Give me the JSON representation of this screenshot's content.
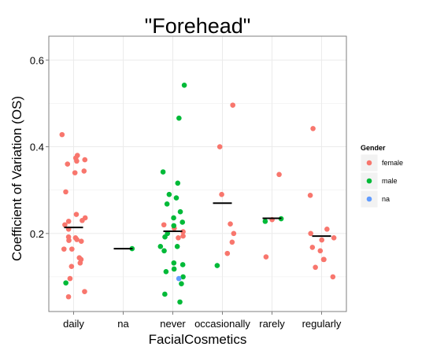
{
  "chart_data": {
    "type": "scatter",
    "title": "\"Forehead\"",
    "xlabel": "FacialCosmetics",
    "ylabel": "Coefficient of Variation (OS)",
    "categories": [
      "daily",
      "na",
      "never",
      "occasionally",
      "rarely",
      "regularly"
    ],
    "yticks": [
      "0.2",
      "0.4",
      "0.6"
    ],
    "ylim": [
      0.02,
      0.655
    ],
    "grid": true,
    "legend": {
      "title": "Gender",
      "position": "right",
      "entries": [
        "female",
        "male",
        "na"
      ]
    },
    "colors": {
      "female": "#f8766d",
      "male": "#00ba38",
      "na": "#619cff",
      "mean": "#000000",
      "grid": "#ebebeb",
      "frame": "#7f7f7f"
    },
    "means": [
      0.214,
      0.165,
      0.205,
      0.27,
      0.235,
      0.194
    ],
    "series": [
      {
        "name": "female",
        "points": [
          [
            "daily",
            0.428
          ],
          [
            "daily",
            0.38
          ],
          [
            "daily",
            0.374
          ],
          [
            "daily",
            0.37
          ],
          [
            "daily",
            0.367
          ],
          [
            "daily",
            0.36
          ],
          [
            "daily",
            0.344
          ],
          [
            "daily",
            0.34
          ],
          [
            "daily",
            0.296
          ],
          [
            "daily",
            0.244
          ],
          [
            "daily",
            0.236
          ],
          [
            "daily",
            0.23
          ],
          [
            "daily",
            0.228
          ],
          [
            "daily",
            0.22
          ],
          [
            "daily",
            0.21
          ],
          [
            "daily",
            0.192
          ],
          [
            "daily",
            0.19
          ],
          [
            "daily",
            0.186
          ],
          [
            "daily",
            0.184
          ],
          [
            "daily",
            0.182
          ],
          [
            "daily",
            0.164
          ],
          [
            "daily",
            0.164
          ],
          [
            "daily",
            0.144
          ],
          [
            "daily",
            0.14
          ],
          [
            "daily",
            0.132
          ],
          [
            "daily",
            0.124
          ],
          [
            "daily",
            0.096
          ],
          [
            "daily",
            0.066
          ],
          [
            "daily",
            0.054
          ],
          [
            "never",
            0.22
          ],
          [
            "never",
            0.212
          ],
          [
            "never",
            0.204
          ],
          [
            "never",
            0.194
          ],
          [
            "never",
            0.19
          ],
          [
            "occasionally",
            0.496
          ],
          [
            "occasionally",
            0.4
          ],
          [
            "occasionally",
            0.29
          ],
          [
            "occasionally",
            0.222
          ],
          [
            "occasionally",
            0.2
          ],
          [
            "occasionally",
            0.18
          ],
          [
            "occasionally",
            0.154
          ],
          [
            "rarely",
            0.336
          ],
          [
            "rarely",
            0.232
          ],
          [
            "rarely",
            0.146
          ],
          [
            "regularly",
            0.442
          ],
          [
            "regularly",
            0.288
          ],
          [
            "regularly",
            0.21
          ],
          [
            "regularly",
            0.2
          ],
          [
            "regularly",
            0.19
          ],
          [
            "regularly",
            0.185
          ],
          [
            "regularly",
            0.168
          ],
          [
            "regularly",
            0.16
          ],
          [
            "regularly",
            0.14
          ],
          [
            "regularly",
            0.14
          ],
          [
            "regularly",
            0.122
          ],
          [
            "regularly",
            0.1
          ]
        ]
      },
      {
        "name": "male",
        "points": [
          [
            "daily",
            0.086
          ],
          [
            "na",
            0.165
          ],
          [
            "never",
            0.542
          ],
          [
            "never",
            0.466
          ],
          [
            "never",
            0.342
          ],
          [
            "never",
            0.316
          ],
          [
            "never",
            0.29
          ],
          [
            "never",
            0.282
          ],
          [
            "never",
            0.268
          ],
          [
            "never",
            0.25
          ],
          [
            "never",
            0.236
          ],
          [
            "never",
            0.226
          ],
          [
            "never",
            0.218
          ],
          [
            "never",
            0.2
          ],
          [
            "never",
            0.192
          ],
          [
            "never",
            0.17
          ],
          [
            "never",
            0.17
          ],
          [
            "never",
            0.16
          ],
          [
            "never",
            0.132
          ],
          [
            "never",
            0.128
          ],
          [
            "never",
            0.118
          ],
          [
            "never",
            0.112
          ],
          [
            "never",
            0.1
          ],
          [
            "never",
            0.084
          ],
          [
            "never",
            0.06
          ],
          [
            "never",
            0.042
          ],
          [
            "occasionally",
            0.126
          ],
          [
            "rarely",
            0.234
          ],
          [
            "rarely",
            0.228
          ]
        ]
      },
      {
        "name": "na",
        "points": [
          [
            "never",
            0.096
          ]
        ]
      }
    ]
  }
}
